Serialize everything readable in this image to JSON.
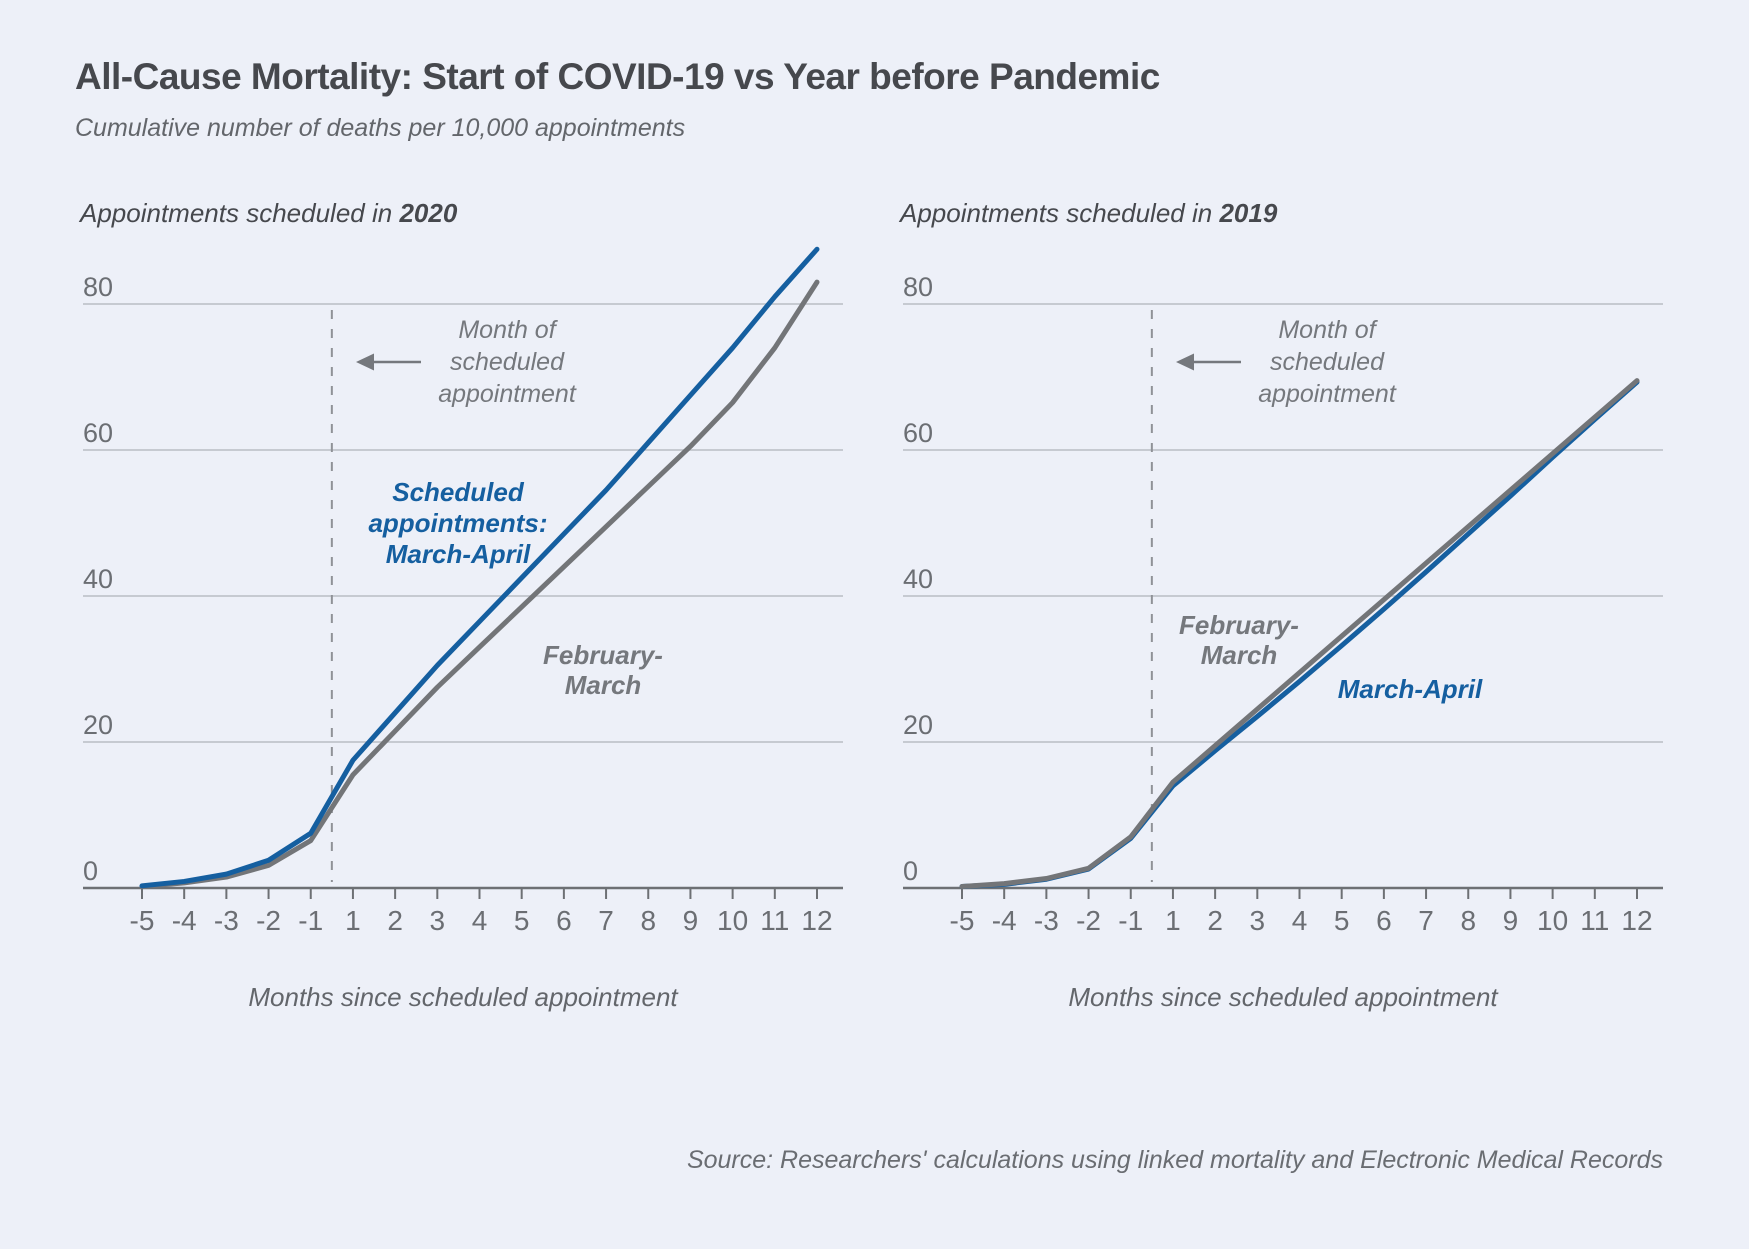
{
  "page": {
    "title": "All-Cause Mortality: Start of COVID-19 vs Year before Pandemic",
    "subtitle": "Cumulative number of deaths per 10,000 appointments",
    "source": "Source: Researchers' calculations using linked mortality and Electronic Medical Records"
  },
  "colors": {
    "background": "#edf0f8",
    "blue": "#155fa0",
    "gray": "#737578",
    "grid": "#b9bdc4",
    "axis": "#6d7074",
    "axis_text": "#6b6e73",
    "dashed": "#8f9297",
    "annotation": "#75787d",
    "title_text": "#46484d",
    "muted_text": "#63666b"
  },
  "chart_data": [
    {
      "type": "line",
      "panel_title_prefix": "Appointments scheduled in ",
      "panel_title_year": "2020",
      "xlabel": "Months since scheduled appointment",
      "ylabel": "Cumulative number of deaths per 10,000 appointments",
      "x_tick_labels": [
        "-5",
        "-4",
        "-3",
        "-2",
        "-1",
        "1",
        "2",
        "3",
        "4",
        "5",
        "6",
        "7",
        "8",
        "9",
        "10",
        "11",
        "12"
      ],
      "x_categories": [
        -5,
        -4,
        -3,
        -2,
        -1,
        1,
        2,
        3,
        4,
        5,
        6,
        7,
        8,
        9,
        10,
        11,
        12
      ],
      "y_ticks": [
        0,
        20,
        40,
        60,
        80
      ],
      "ylim": [
        0,
        80
      ],
      "grid": true,
      "legend_position": "inline-labels",
      "dashed_between": [
        "-1",
        "1"
      ],
      "dashed_label": "Month of\nscheduled\nappointment",
      "series": [
        {
          "name": "February-March",
          "color_key": "gray",
          "values": [
            0.2,
            0.7,
            1.5,
            3.1,
            6.5,
            15.5,
            21.5,
            27.5,
            33,
            38.5,
            44,
            49.5,
            55,
            60.5,
            66.5,
            74,
            83
          ]
        },
        {
          "name": "Scheduled appointments: March-April",
          "color_key": "blue",
          "values": [
            0.3,
            0.9,
            1.9,
            3.8,
            7.5,
            17.5,
            24,
            30.5,
            36.5,
            42.5,
            48.5,
            54.5,
            61,
            67.5,
            74,
            81,
            87.5
          ]
        }
      ],
      "labels": {
        "blue": "Scheduled\nappointments:\nMarch-April",
        "gray": "February-\nMarch"
      }
    },
    {
      "type": "line",
      "panel_title_prefix": "Appointments scheduled in ",
      "panel_title_year": "2019",
      "xlabel": "Months since scheduled appointment",
      "ylabel": "Cumulative number of deaths per 10,000 appointments",
      "x_tick_labels": [
        "-5",
        "-4",
        "-3",
        "-2",
        "-1",
        "1",
        "2",
        "3",
        "4",
        "5",
        "6",
        "7",
        "8",
        "9",
        "10",
        "11",
        "12"
      ],
      "x_categories": [
        -5,
        -4,
        -3,
        -2,
        -1,
        1,
        2,
        3,
        4,
        5,
        6,
        7,
        8,
        9,
        10,
        11,
        12
      ],
      "y_ticks": [
        0,
        20,
        40,
        60,
        80
      ],
      "ylim": [
        0,
        80
      ],
      "grid": true,
      "legend_position": "inline-labels",
      "dashed_between": [
        "-1",
        "1"
      ],
      "dashed_label": "Month of\nscheduled\nappointment",
      "series": [
        {
          "name": "March-April",
          "color_key": "blue",
          "values": [
            0.2,
            0.5,
            1.2,
            2.6,
            6.8,
            14,
            18.8,
            23.5,
            28.3,
            33.2,
            38.2,
            43.3,
            48.5,
            53.7,
            59,
            64.2,
            69.3
          ]
        },
        {
          "name": "February-March",
          "color_key": "gray",
          "values": [
            0.2,
            0.6,
            1.3,
            2.7,
            7,
            14.5,
            19.5,
            24.5,
            29.5,
            34.5,
            39.5,
            44.5,
            49.5,
            54.5,
            59.5,
            64.5,
            69.5
          ]
        }
      ],
      "labels": {
        "blue": "March-April",
        "gray": "February-\nMarch"
      }
    }
  ]
}
